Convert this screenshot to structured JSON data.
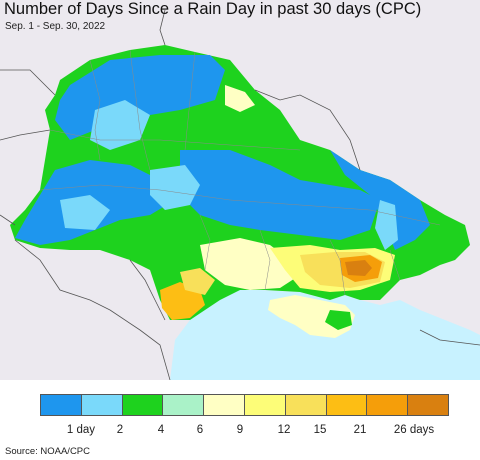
{
  "title": "Number of Days Since a Rain Day in past 30 days (CPC)",
  "subtitle": "Sep. 1 - Sep. 30, 2022",
  "source": "Source: NOAA/CPC",
  "legend": {
    "colors": [
      "#1e96ee",
      "#7ad9fa",
      "#1ed21e",
      "#aaf2c8",
      "#ffffc4",
      "#fdfd78",
      "#f8e05a",
      "#fdbe14",
      "#f59e0a",
      "#d98010"
    ],
    "labels": [
      "1 day",
      "2",
      "4",
      "6",
      "9",
      "12",
      "15",
      "21",
      "26 days"
    ]
  },
  "colors": {
    "background_land": "#ece9ef",
    "sea": "#c8f2ff",
    "border": "#555555"
  }
}
